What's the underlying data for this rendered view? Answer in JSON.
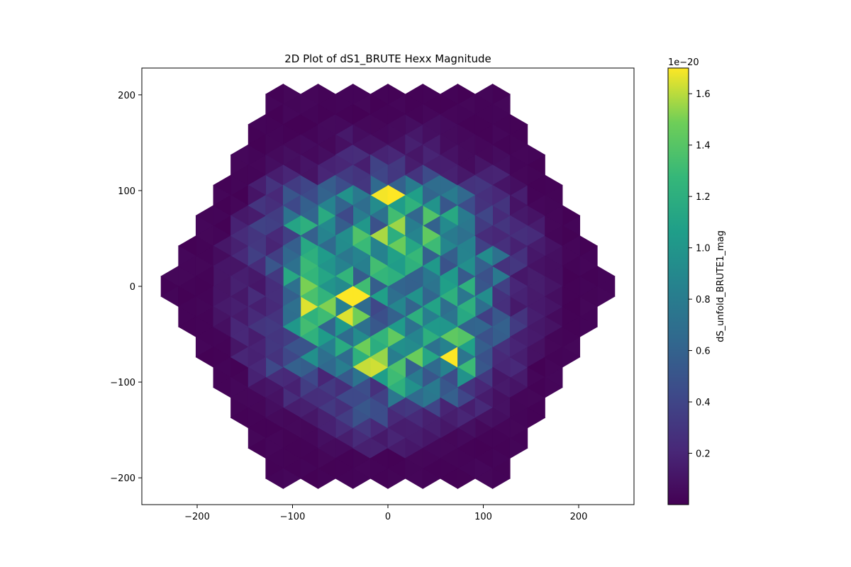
{
  "chart_data": {
    "type": "heatmap",
    "title": "2D Plot of dS1_BRUTE Hexx Magnitude",
    "xlabel": "",
    "ylabel": "",
    "xlim": [
      -258,
      258
    ],
    "ylim": [
      -228,
      228
    ],
    "x_ticks": [
      -200,
      -100,
      0,
      100,
      200
    ],
    "x_tick_labels": [
      "−200",
      "−100",
      "0",
      "100",
      "200"
    ],
    "y_ticks": [
      -200,
      -100,
      0,
      100,
      200
    ],
    "y_tick_labels": [
      "−200",
      "−100",
      "0",
      "100",
      "200"
    ],
    "colormap": "viridis",
    "colorbar": {
      "label": "dS_unfold_BRUTE1_mag",
      "offset_text": "1e−20",
      "range": [
        0.0,
        1.7
      ],
      "ticks": [
        0.2,
        0.4,
        0.6,
        0.8,
        1.0,
        1.2,
        1.4,
        1.6
      ],
      "tick_labels": [
        "0.2",
        "0.4",
        "0.6",
        "0.8",
        "1.0",
        "1.2",
        "1.4",
        "1.6"
      ]
    },
    "grid": false,
    "mesh": {
      "shape": "hexagon",
      "pitch": 36.6,
      "rings": 6,
      "triangles_per_cell": 6,
      "note_values": "cell values in units of 1e-20; triangles in each hexagon share the cell value",
      "cells": [
        {
          "x": 0,
          "y": 85,
          "v": 1.5
        },
        {
          "x": -80,
          "y": -28,
          "v": 1.7
        },
        {
          "x": -45,
          "y": -8,
          "v": 1.5
        },
        {
          "x": -15,
          "y": -80,
          "v": 1.6
        },
        {
          "x": 10,
          "y": -75,
          "v": 1.45
        },
        {
          "x": 10,
          "y": 20,
          "v": 1.4
        },
        {
          "x": -15,
          "y": 45,
          "v": 1.3
        },
        {
          "x": 65,
          "y": -70,
          "v": 1.35
        },
        {
          "x": 35,
          "y": 90,
          "v": 1.1
        },
        {
          "x": 75,
          "y": -20,
          "v": 1.2
        },
        {
          "x": -85,
          "y": 55,
          "v": 1.05
        },
        {
          "x": 25,
          "y": -20,
          "v": 1.05
        },
        {
          "x": -30,
          "y": -60,
          "v": 1.05
        },
        {
          "x": 25,
          "y": -95,
          "v": 1.0
        },
        {
          "x": 45,
          "y": 45,
          "v": 1.0
        },
        {
          "x": 70,
          "y": 60,
          "v": 0.85
        },
        {
          "x": -95,
          "y": 20,
          "v": 0.9
        },
        {
          "x": -5,
          "y": 20,
          "v": 0.9
        },
        {
          "x": 40,
          "y": 15,
          "v": 0.8
        },
        {
          "x": -20,
          "y": 70,
          "v": 0.7
        },
        {
          "x": -45,
          "y": 85,
          "v": 0.75
        },
        {
          "x": -65,
          "y": -55,
          "v": 0.8
        },
        {
          "x": 100,
          "y": 20,
          "v": 0.75
        },
        {
          "x": 55,
          "y": -40,
          "v": 0.7
        },
        {
          "x": -5,
          "y": -30,
          "v": 0.65
        },
        {
          "x": -40,
          "y": 25,
          "v": 0.6
        },
        {
          "x": 50,
          "y": -90,
          "v": 0.5
        },
        {
          "x": -15,
          "y": -110,
          "v": 0.45
        },
        {
          "x": 100,
          "y": -35,
          "v": 0.55
        },
        {
          "x": -110,
          "y": 45,
          "v": 0.4
        },
        {
          "x": -30,
          "y": 120,
          "v": 0.3
        },
        {
          "x": 110,
          "y": 60,
          "v": 0.35
        },
        {
          "x": 25,
          "y": 125,
          "v": 0.3
        },
        {
          "x": -60,
          "y": -105,
          "v": 0.35
        },
        {
          "x": 120,
          "y": -105,
          "v": 0.35
        },
        {
          "x": 30,
          "y": -140,
          "v": 0.3
        },
        {
          "x": -115,
          "y": -40,
          "v": 0.35
        },
        {
          "x": 140,
          "y": 0,
          "v": 0.25
        },
        {
          "x": -130,
          "y": 0,
          "v": 0.25
        },
        {
          "x": 70,
          "y": -175,
          "v": 0.2
        },
        {
          "x": -100,
          "y": -170,
          "v": 0.15
        },
        {
          "x": -75,
          "y": 140,
          "v": 0.15
        },
        {
          "x": 75,
          "y": 135,
          "v": 0.15
        },
        {
          "x": 0,
          "y": 160,
          "v": 0.12
        }
      ]
    }
  }
}
